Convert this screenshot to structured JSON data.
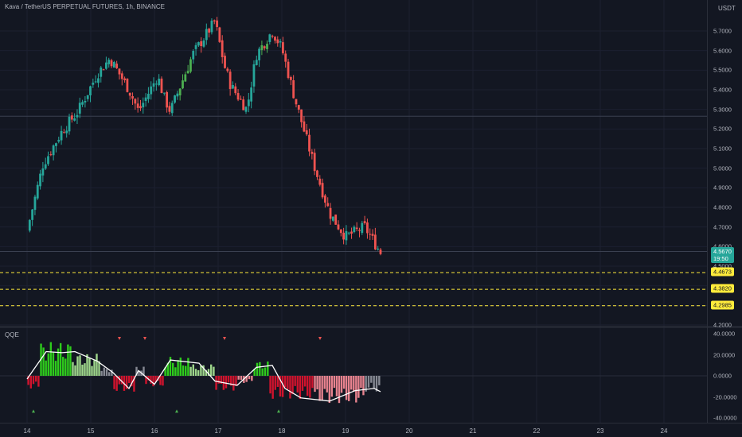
{
  "header": {
    "title": "Kava / TetherUS PERPETUAL FUTURES, 1h, BINANCE",
    "currency": "USDT"
  },
  "indicator": {
    "name": "QQE"
  },
  "colors": {
    "background": "#131722",
    "up": "#26a69a",
    "down": "#ef5350",
    "signal_up": "#4caf50",
    "bright_green": "#2ecc1c",
    "light_green": "#9ed68b",
    "gray": "#868993",
    "crimson": "#d0132d",
    "pink": "#e8838f",
    "yellow": "#ffeb3b"
  },
  "price_labels": {
    "current_price": "4.5670",
    "countdown": "19:50",
    "levels": [
      "4.4673",
      "4.3820",
      "4.2985"
    ]
  },
  "chart_data": [
    {
      "type": "candlestick",
      "title": "Kava / TetherUS PERPETUAL FUTURES, 1h, BINANCE",
      "ylabel": "USDT",
      "ylim": [
        4.2,
        5.75
      ],
      "y_tick_labels": [
        "5.7000",
        "5.6000",
        "5.5000",
        "5.4000",
        "5.3000",
        "5.2000",
        "5.1000",
        "5.0000",
        "4.9000",
        "4.8000",
        "4.7000",
        "4.6000",
        "4.5000",
        "4.4000",
        "4.3000",
        "4.2000"
      ],
      "x_tick_labels": [
        "14",
        "15",
        "16",
        "17",
        "18",
        "19",
        "20",
        "21",
        "22",
        "23",
        "24"
      ],
      "horizontal_levels": [
        4.4673,
        4.382,
        4.2985
      ],
      "reference_lines": [
        5.265,
        4.575
      ],
      "current_price": 4.567,
      "close_path": [
        {
          "x": 0,
          "y": 4.68
        },
        {
          "x": 0.25,
          "y": 5.02
        },
        {
          "x": 0.55,
          "y": 5.19
        },
        {
          "x": 0.8,
          "y": 5.29
        },
        {
          "x": 1.1,
          "y": 5.48
        },
        {
          "x": 1.3,
          "y": 5.56
        },
        {
          "x": 1.6,
          "y": 5.4
        },
        {
          "x": 1.75,
          "y": 5.29
        },
        {
          "x": 2.05,
          "y": 5.47
        },
        {
          "x": 2.15,
          "y": 5.36
        },
        {
          "x": 2.25,
          "y": 5.29
        },
        {
          "x": 2.6,
          "y": 5.58
        },
        {
          "x": 2.95,
          "y": 5.75
        },
        {
          "x": 3.1,
          "y": 5.52
        },
        {
          "x": 3.2,
          "y": 5.42
        },
        {
          "x": 3.45,
          "y": 5.3
        },
        {
          "x": 3.6,
          "y": 5.58
        },
        {
          "x": 3.85,
          "y": 5.7
        },
        {
          "x": 4.0,
          "y": 5.61
        },
        {
          "x": 4.2,
          "y": 5.36
        },
        {
          "x": 4.5,
          "y": 5.02
        },
        {
          "x": 4.75,
          "y": 4.77
        },
        {
          "x": 5.0,
          "y": 4.65
        },
        {
          "x": 5.3,
          "y": 4.7
        },
        {
          "x": 5.55,
          "y": 4.57
        }
      ]
    },
    {
      "type": "bar",
      "title": "QQE",
      "ylim": [
        -40,
        40
      ],
      "y_tick_labels": [
        "40.0000",
        "20.0000",
        "0.0000",
        "-20.0000",
        "-40.0000"
      ],
      "bands": [
        {
          "x": [
            0,
            0.2
          ],
          "value": -12,
          "color": "crimson"
        },
        {
          "x": [
            0.2,
            0.7
          ],
          "value": 32,
          "color": "bright_green"
        },
        {
          "x": [
            0.7,
            1.15
          ],
          "value": 21,
          "color": "light_green"
        },
        {
          "x": [
            1.15,
            1.35
          ],
          "value": 8,
          "color": "gray"
        },
        {
          "x": [
            1.35,
            1.7
          ],
          "value": -15,
          "color": "crimson"
        },
        {
          "x": [
            1.7,
            1.85
          ],
          "value": 9,
          "color": "gray"
        },
        {
          "x": [
            1.85,
            2.15
          ],
          "value": -10,
          "color": "crimson"
        },
        {
          "x": [
            2.15,
            2.55
          ],
          "value": 18,
          "color": "bright_green"
        },
        {
          "x": [
            2.55,
            2.95
          ],
          "value": 11,
          "color": "light_green"
        },
        {
          "x": [
            2.95,
            3.3
          ],
          "value": -14,
          "color": "crimson"
        },
        {
          "x": [
            3.3,
            3.55
          ],
          "value": -7,
          "color": "pink"
        },
        {
          "x": [
            3.55,
            3.8
          ],
          "value": 14,
          "color": "bright_green"
        },
        {
          "x": [
            3.8,
            4.5
          ],
          "value": -22,
          "color": "crimson"
        },
        {
          "x": [
            4.5,
            5.3
          ],
          "value": -26,
          "color": "pink"
        },
        {
          "x": [
            5.3,
            5.55
          ],
          "value": -15,
          "color": "gray"
        }
      ],
      "qqe_line": [
        {
          "x": 0,
          "y": -3
        },
        {
          "x": 0.3,
          "y": 23
        },
        {
          "x": 0.55,
          "y": 22
        },
        {
          "x": 0.75,
          "y": 23
        },
        {
          "x": 1.1,
          "y": 14
        },
        {
          "x": 1.35,
          "y": 3
        },
        {
          "x": 1.6,
          "y": -12
        },
        {
          "x": 1.75,
          "y": 5
        },
        {
          "x": 2.0,
          "y": -8
        },
        {
          "x": 2.25,
          "y": 15
        },
        {
          "x": 2.7,
          "y": 12
        },
        {
          "x": 2.95,
          "y": -5
        },
        {
          "x": 3.3,
          "y": -9
        },
        {
          "x": 3.6,
          "y": 8
        },
        {
          "x": 3.85,
          "y": 10
        },
        {
          "x": 4.05,
          "y": -12
        },
        {
          "x": 4.3,
          "y": -21
        },
        {
          "x": 4.75,
          "y": -24
        },
        {
          "x": 5.15,
          "y": -14
        },
        {
          "x": 5.45,
          "y": -12
        },
        {
          "x": 5.55,
          "y": -15
        }
      ],
      "signals": [
        {
          "x": 0.1,
          "dir": "up"
        },
        {
          "x": 1.45,
          "dir": "down"
        },
        {
          "x": 1.85,
          "dir": "down"
        },
        {
          "x": 2.35,
          "dir": "up"
        },
        {
          "x": 3.1,
          "dir": "down"
        },
        {
          "x": 3.95,
          "dir": "up"
        },
        {
          "x": 4.6,
          "dir": "down"
        }
      ]
    }
  ]
}
